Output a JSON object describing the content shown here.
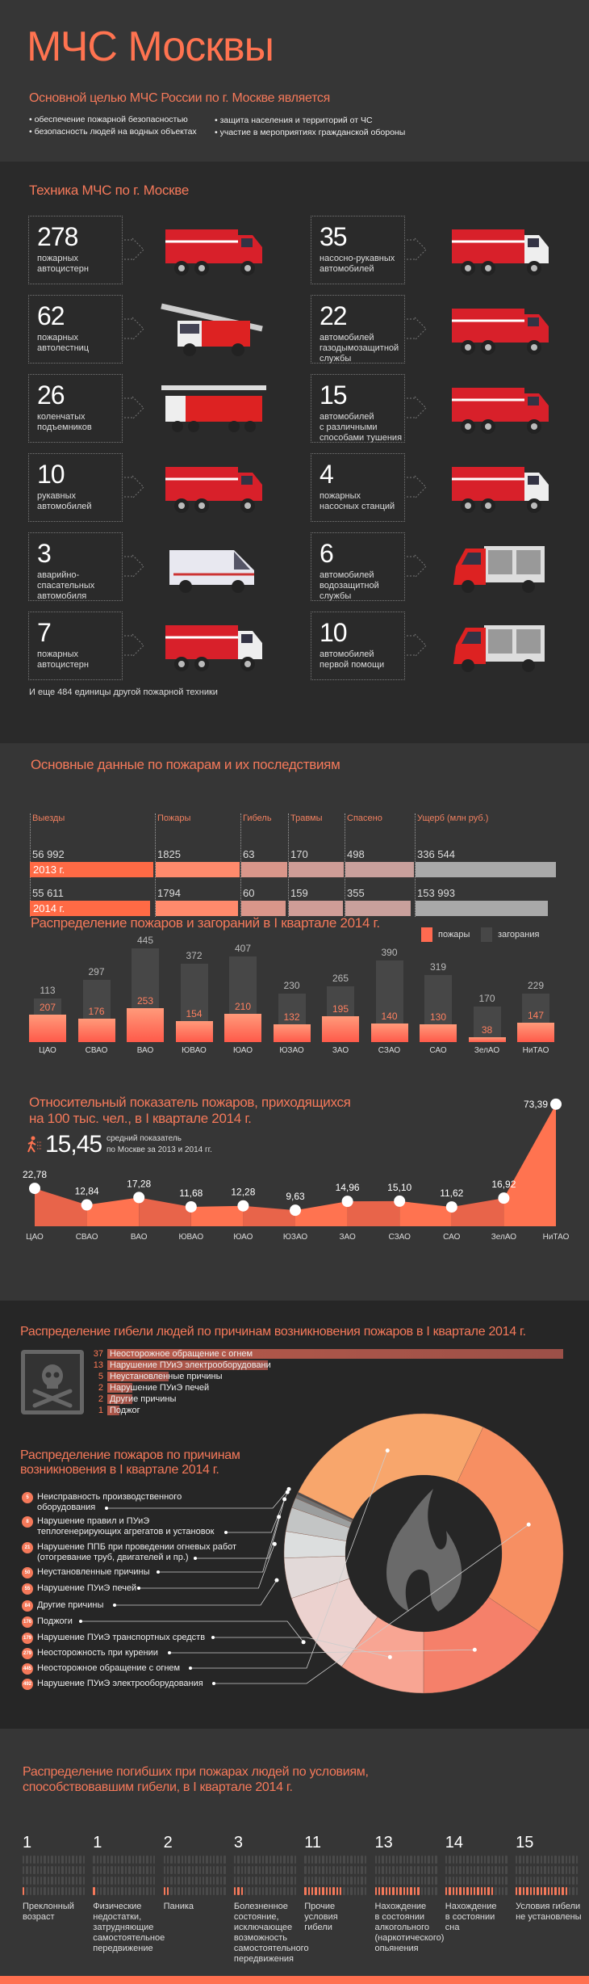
{
  "header": {
    "title": "МЧС Москвы",
    "subtitle": "Основной целью МЧС России по г. Москве является",
    "bullets": [
      "• обеспечение пожарной безопасностью",
      "• безопасность людей на водных объектах",
      "• защита населения и территорий от ЧС",
      "•  участие в мероприятиях гражданской обороны"
    ]
  },
  "vehicles": {
    "title": "Техника МЧС по г. Москве",
    "left": [
      {
        "num": "278",
        "label": "пожарных\nавтоцистерн",
        "kind": "tanker"
      },
      {
        "num": "62",
        "label": "пожарных\nавтолестниц",
        "kind": "ladder"
      },
      {
        "num": "26",
        "label": "коленчатых\nподъемников",
        "kind": "lift"
      },
      {
        "num": "10",
        "label": "рукавных\nавтомобилей",
        "kind": "box"
      },
      {
        "num": "3",
        "label": "аварийно-\nспасательных\nавтомобиля",
        "kind": "van"
      },
      {
        "num": "7",
        "label": "пожарных\nавтоцистерн",
        "kind": "tanker2"
      }
    ],
    "right": [
      {
        "num": "35",
        "label": "насосно-рукавных\nавтомобилей",
        "kind": "tanker2"
      },
      {
        "num": "22",
        "label": "автомобилей\nгазодымозащитной\nслужбы",
        "kind": "box"
      },
      {
        "num": "15",
        "label": "автомобилей\nс различными\nспособами тушения",
        "kind": "tanker"
      },
      {
        "num": "4",
        "label": "пожарных\nнасосных станций",
        "kind": "tanker2"
      },
      {
        "num": "6",
        "label": "автомобилей\nводозащитной\nслужбы",
        "kind": "gazelle"
      },
      {
        "num": "10",
        "label": "автомобилей\nпервой помощи",
        "kind": "gazelle"
      }
    ],
    "footer": "И еще 484  единицы другой пожарной техники"
  },
  "stats": {
    "title": "Основные данные по пожарам и их последствиям",
    "columns": [
      "Выезды",
      "Пожары",
      "Гибель",
      "Травмы",
      "Спасено",
      "Ущерб (млн руб.)"
    ],
    "rows": [
      {
        "year": "2013 г.",
        "values": [
          "56 992",
          "1825",
          "63",
          "170",
          "498",
          "336 544"
        ]
      },
      {
        "year": "2014 г.",
        "values": [
          "55 611",
          "1794",
          "60",
          "159",
          "355",
          "153 993"
        ]
      }
    ],
    "colors": [
      "#ff6a45",
      "#ff8a6c",
      "#d9968a",
      "#cf9d97",
      "#c9a09c",
      "#a9a9a9"
    ]
  },
  "chart_data": [
    {
      "type": "bar",
      "title": "Распределение пожаров и загораний в I квартале 2014 г.",
      "categories": [
        "ЦАО",
        "СВАО",
        "ВАО",
        "ЮВАО",
        "ЮАО",
        "ЮЗАО",
        "ЗАО",
        "СЗАО",
        "САО",
        "ЗелАО",
        "НиТАО"
      ],
      "series": [
        {
          "name": "пожары",
          "values": [
            207,
            176,
            253,
            154,
            210,
            132,
            195,
            140,
            130,
            38,
            147
          ],
          "color": "#ff6a50"
        },
        {
          "name": "загорания",
          "values": [
            113,
            297,
            445,
            372,
            407,
            230,
            265,
            390,
            319,
            170,
            229
          ],
          "color": "#474747"
        }
      ]
    },
    {
      "type": "area",
      "title": "Относительный показатель пожаров, приходящихся\nна 100 тыс. чел., в I квартале 2014 г.",
      "categories": [
        "ЦАО",
        "СВАО",
        "ВАО",
        "ЮВАО",
        "ЮАО",
        "ЮЗАО",
        "ЗАО",
        "СЗАО",
        "САО",
        "ЗелАО",
        "НиТАО"
      ],
      "values": [
        22.78,
        12.84,
        17.28,
        11.68,
        12.28,
        9.63,
        14.96,
        15.1,
        11.62,
        16.92,
        73.39
      ],
      "labels": [
        "22,78",
        "12,84",
        "17,28",
        "11,68",
        "12,28",
        "9,63",
        "14,96",
        "15,10",
        "11,62",
        "16,92",
        "73,39"
      ],
      "average": {
        "value": "15,45",
        "label": "средний показатель\nпо Москве за 2013 и 2014 гг."
      },
      "color": "#ff7350"
    },
    {
      "type": "bar",
      "title": "Распределение гибели людей по причинам возникновения пожаров в I квартале 2014 г.",
      "categories": [
        "Неосторожное обращение с огнем",
        "Нарушение ПУиЭ электрооборудовани",
        "Неустановленные причины",
        "Нарушение ПУиЭ печей",
        "Другие причины",
        "Поджог"
      ],
      "values": [
        37,
        13,
        5,
        2,
        2,
        1
      ]
    },
    {
      "type": "pie",
      "title": "Распределение пожаров по причинам\nвозникновения в I квартале 2014 г.",
      "slices": [
        {
          "label": "Неисправность производственного\nоборудования",
          "value": 5,
          "color": "#4e4e4e"
        },
        {
          "label": "Нарушение правил и ПУиЭ\nтеплогенерирующих агрегатов и установок",
          "value": 8,
          "color": "#6f7070"
        },
        {
          "label": "Нарушение ППБ при проведении огневых работ\n(отогревание труб, двигателей и пр.)",
          "value": 21,
          "color": "#9c9e9e"
        },
        {
          "label": "Неустановленные причины",
          "value": 50,
          "color": "#c3c5c5"
        },
        {
          "label": "Нарушение ПУиЭ печей",
          "value": 55,
          "color": "#dcdede"
        },
        {
          "label": "Другие причины",
          "value": 84,
          "color": "#e2d9d8"
        },
        {
          "label": "Поджоги",
          "value": 176,
          "color": "#ecd2cf"
        },
        {
          "label": "Нарушение ПУиЭ транспортных средств",
          "value": 179,
          "color": "#f8a593"
        },
        {
          "label": "Неосторожность при курении",
          "value": 279,
          "color": "#f5806a"
        },
        {
          "label": "Неосторожное обращение с огнем",
          "value": 445,
          "color": "#f8a66c"
        },
        {
          "label": "Нарушение ПУиЭ электрооборудования",
          "value": 492,
          "color": "#f78f62"
        }
      ],
      "clockwise_order": [
        "445",
        "492",
        "279",
        "179",
        "176",
        "84",
        "55",
        "50",
        "21",
        "8",
        "5"
      ],
      "donut": true,
      "center_icon": "flame-icon"
    },
    {
      "type": "pictogram",
      "title": "Распределение погибших при пожарах людей по условиям,\nспособствовавшим гибели, в I квартале 2014 г.",
      "categories": [
        "Преклонный\nвозраст",
        "Физические\nнедостатки,\nзатрудняющие\nсамостоятельное\nпередвижение",
        "Паника",
        "Болезненное\nсостояние,\nисключающее\nвозможность\nсамостоятельного\nпередвижения",
        "Прочие\nусловия\nгибели",
        "Нахождение\nв состоянии\nалкогольного\n(наркотического)\nопьянения",
        "Нахождение\nв состоянии\nсна",
        "Условия гибели\nне установлены"
      ],
      "values": [
        1,
        1,
        2,
        3,
        11,
        13,
        14,
        15
      ]
    }
  ],
  "colors": {
    "accent": "#f5795a",
    "bg_dark": "#2a2a2a",
    "bg_mid": "#363636",
    "bottom_stripe": "#ff7050"
  }
}
